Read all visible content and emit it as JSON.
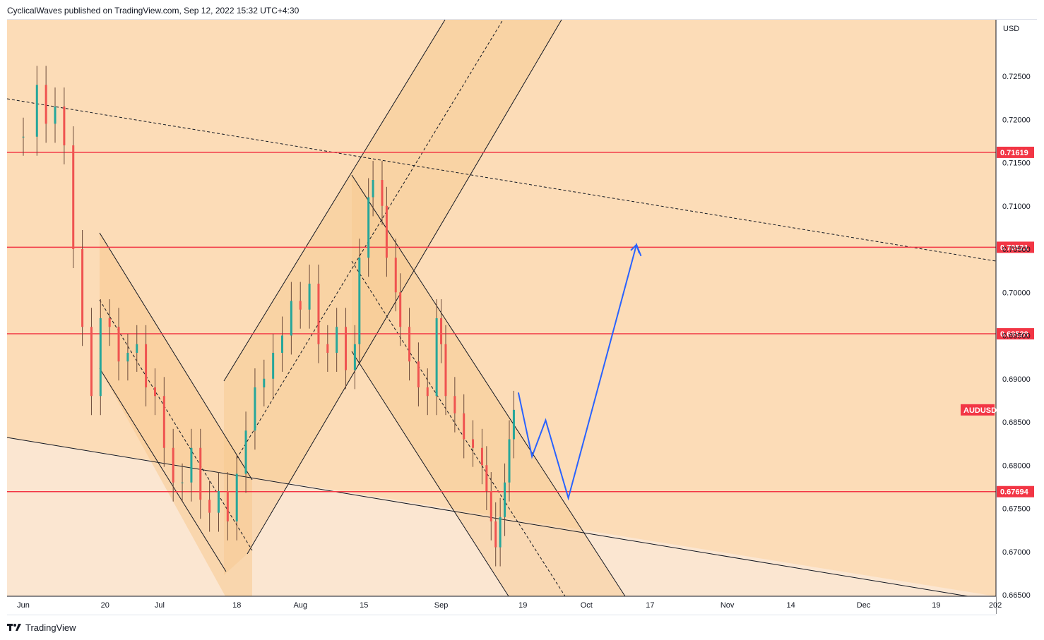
{
  "header": {
    "publisher": "CyclicalWaves published on TradingView.com, Sep 12, 2022 15:32 UTC+4:30"
  },
  "footer": {
    "brand": "TradingView"
  },
  "chart_data": {
    "type": "candlestick",
    "symbol": "AUDUSD",
    "currency": "USD",
    "ylim": [
      0.665,
      0.729
    ],
    "y_ticks": [
      "0.72500",
      "0.72000",
      "0.71500",
      "0.71000",
      "0.70500",
      "0.70000",
      "0.69500",
      "0.69000",
      "0.68500",
      "0.68000",
      "0.67500",
      "0.67000",
      "0.66500"
    ],
    "x_ticks": [
      "Jun",
      "20",
      "Jul",
      "18",
      "Aug",
      "15",
      "Sep",
      "19",
      "Oct",
      "17",
      "Nov",
      "14",
      "Dec",
      "19",
      "202"
    ],
    "x_tick_days": [
      0,
      18,
      30,
      47,
      61,
      75,
      92,
      110,
      124,
      138,
      155,
      169,
      185,
      201,
      214
    ],
    "horizontal_levels": [
      {
        "label": "0.71619",
        "value": 0.71619
      },
      {
        "label": "0.70521",
        "value": 0.70521
      },
      {
        "label": "0.69520",
        "value": 0.6952
      },
      {
        "label": "0.67694",
        "value": 0.67694
      }
    ],
    "symbol_badge": {
      "label": "AUDUSD",
      "value": 0.6864
    },
    "close_series": [
      {
        "day": 0,
        "close": 0.718
      },
      {
        "day": 3,
        "close": 0.724
      },
      {
        "day": 5,
        "close": 0.7195
      },
      {
        "day": 7,
        "close": 0.7215
      },
      {
        "day": 9,
        "close": 0.717
      },
      {
        "day": 11,
        "close": 0.705
      },
      {
        "day": 13,
        "close": 0.696
      },
      {
        "day": 15,
        "close": 0.688
      },
      {
        "day": 17,
        "close": 0.697
      },
      {
        "day": 19,
        "close": 0.696
      },
      {
        "day": 21,
        "close": 0.692
      },
      {
        "day": 23,
        "close": 0.693
      },
      {
        "day": 25,
        "close": 0.694
      },
      {
        "day": 27,
        "close": 0.689
      },
      {
        "day": 29,
        "close": 0.688
      },
      {
        "day": 31,
        "close": 0.682
      },
      {
        "day": 33,
        "close": 0.678
      },
      {
        "day": 35,
        "close": 0.678
      },
      {
        "day": 37,
        "close": 0.682
      },
      {
        "day": 39,
        "close": 0.676
      },
      {
        "day": 41,
        "close": 0.6745
      },
      {
        "day": 43,
        "close": 0.677
      },
      {
        "day": 45,
        "close": 0.6735
      },
      {
        "day": 47,
        "close": 0.679
      },
      {
        "day": 49,
        "close": 0.684
      },
      {
        "day": 51,
        "close": 0.689
      },
      {
        "day": 53,
        "close": 0.69
      },
      {
        "day": 55,
        "close": 0.693
      },
      {
        "day": 57,
        "close": 0.695
      },
      {
        "day": 59,
        "close": 0.699
      },
      {
        "day": 61,
        "close": 0.698
      },
      {
        "day": 63,
        "close": 0.701
      },
      {
        "day": 65,
        "close": 0.694
      },
      {
        "day": 67,
        "close": 0.693
      },
      {
        "day": 69,
        "close": 0.696
      },
      {
        "day": 71,
        "close": 0.691
      },
      {
        "day": 73,
        "close": 0.694
      },
      {
        "day": 74,
        "close": 0.704
      },
      {
        "day": 76,
        "close": 0.711
      },
      {
        "day": 77,
        "close": 0.713
      },
      {
        "day": 79,
        "close": 0.71
      },
      {
        "day": 80,
        "close": 0.704
      },
      {
        "day": 82,
        "close": 0.7
      },
      {
        "day": 83,
        "close": 0.696
      },
      {
        "day": 85,
        "close": 0.692
      },
      {
        "day": 87,
        "close": 0.689
      },
      {
        "day": 89,
        "close": 0.688
      },
      {
        "day": 91,
        "close": 0.697
      },
      {
        "day": 92,
        "close": 0.694
      },
      {
        "day": 93,
        "close": 0.688
      },
      {
        "day": 95,
        "close": 0.686
      },
      {
        "day": 97,
        "close": 0.683
      },
      {
        "day": 99,
        "close": 0.682
      },
      {
        "day": 101,
        "close": 0.68
      },
      {
        "day": 102,
        "close": 0.677
      },
      {
        "day": 103,
        "close": 0.6735
      },
      {
        "day": 104,
        "close": 0.6705
      },
      {
        "day": 105,
        "close": 0.674
      },
      {
        "day": 106,
        "close": 0.678
      },
      {
        "day": 107,
        "close": 0.683
      },
      {
        "day": 108,
        "close": 0.6864
      }
    ],
    "drawings": {
      "projection_path": [
        {
          "day": 109,
          "price": 0.6884
        },
        {
          "day": 112,
          "price": 0.681
        },
        {
          "day": 115,
          "price": 0.6852
        },
        {
          "day": 120,
          "price": 0.6762
        },
        {
          "day": 135,
          "price": 0.7055
        },
        {
          "day": 136,
          "price": 0.7042
        }
      ]
    }
  }
}
